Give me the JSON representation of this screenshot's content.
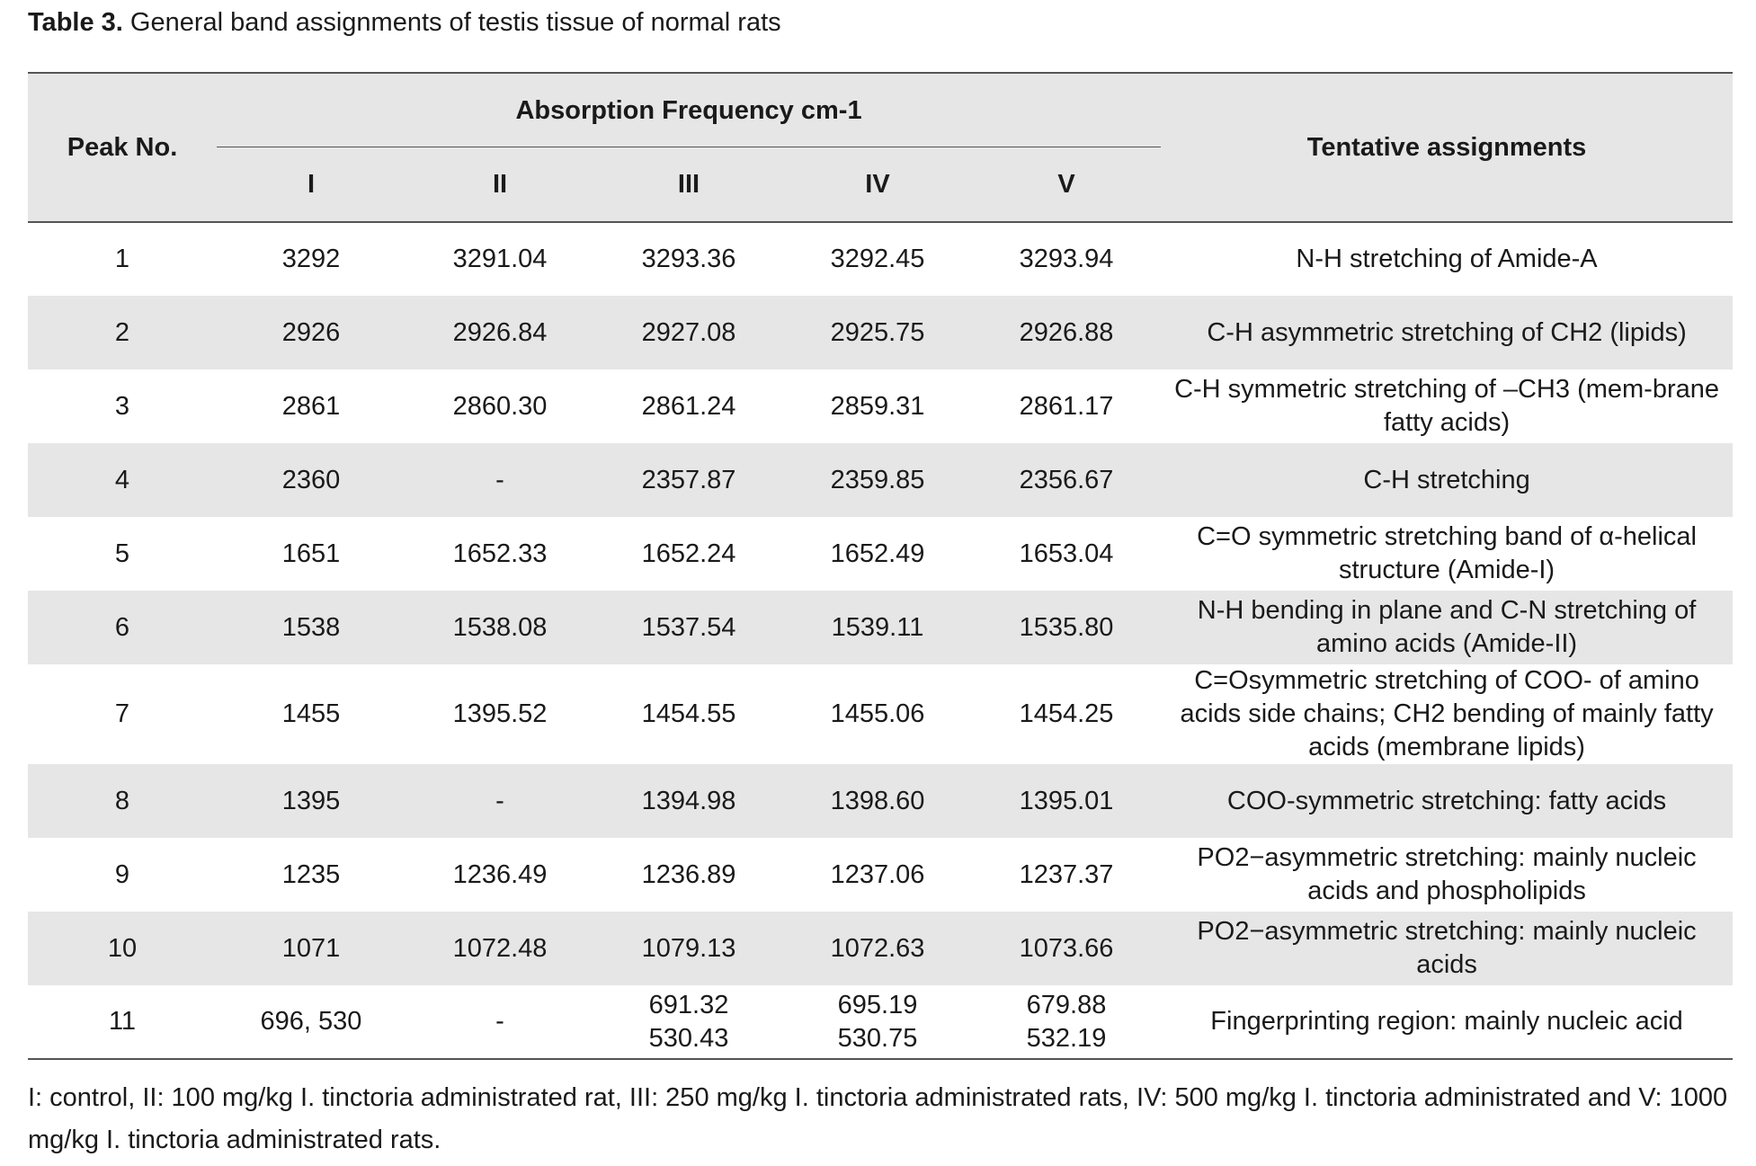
{
  "caption": {
    "label": "Table 3.",
    "text": "General band assignments of testis tissue of normal rats"
  },
  "headers": {
    "peak": "Peak No.",
    "absorption": "Absorption Frequency cm-1",
    "groups": [
      "I",
      "II",
      "III",
      "IV",
      "V"
    ],
    "assignment": "Tentative assignments"
  },
  "rows": [
    {
      "peak": "1",
      "vals": [
        "3292",
        "3291.04",
        "3293.36",
        "3292.45",
        "3293.94"
      ],
      "assign": "N-H stretching of Amide-A"
    },
    {
      "peak": "2",
      "vals": [
        "2926",
        "2926.84",
        "2927.08",
        "2925.75",
        "2926.88"
      ],
      "assign": "C-H asymmetric stretching of CH2 (lipids)"
    },
    {
      "peak": "3",
      "vals": [
        "2861",
        "2860.30",
        "2861.24",
        "2859.31",
        "2861.17"
      ],
      "assign": "C-H symmetric stretching of –CH3 (mem-brane fatty acids)"
    },
    {
      "peak": "4",
      "vals": [
        "2360",
        "-",
        "2357.87",
        "2359.85",
        "2356.67"
      ],
      "assign": "C-H stretching"
    },
    {
      "peak": "5",
      "vals": [
        "1651",
        "1652.33",
        "1652.24",
        "1652.49",
        "1653.04"
      ],
      "assign": "C=O symmetric stretching band of α-helical structure (Amide-I)"
    },
    {
      "peak": "6",
      "vals": [
        "1538",
        "1538.08",
        "1537.54",
        "1539.11",
        "1535.80"
      ],
      "assign": "N-H bending in plane and C-N stretching of amino acids (Amide-II)"
    },
    {
      "peak": "7",
      "vals": [
        "1455",
        "1395.52",
        "1454.55",
        "1455.06",
        "1454.25"
      ],
      "assign": "C=Osymmetric stretching of COO- of amino acids side chains; CH2 bending of mainly fatty acids (membrane lipids)"
    },
    {
      "peak": "8",
      "vals": [
        "1395",
        "-",
        "1394.98",
        "1398.60",
        "1395.01"
      ],
      "assign": "COO-symmetric stretching: fatty acids"
    },
    {
      "peak": "9",
      "vals": [
        "1235",
        "1236.49",
        "1236.89",
        "1237.06",
        "1237.37"
      ],
      "assign": "PO2−asymmetric stretching: mainly nucleic acids and phospholipids"
    },
    {
      "peak": "10",
      "vals": [
        "1071",
        "1072.48",
        "1079.13",
        "1072.63",
        "1073.66"
      ],
      "assign": "PO2−asymmetric stretching: mainly nucleic acids"
    },
    {
      "peak": "11",
      "vals": [
        "696, 530",
        "-",
        "691.32\n530.43",
        "695.19\n530.75",
        "679.88\n532.19"
      ],
      "assign": "Fingerprinting region: mainly nucleic acid"
    }
  ],
  "footnote": "I: control, II:  100 mg/kg  I. tinctoria administrated rat,  III:  250 mg/kg  I. tinctoria administrated rats, IV: 500 mg/kg  I. tinctoria administrated and V: 1000 mg/kg  I. tinctoria administrated rats.",
  "colors": {
    "header_bg": "#e6e6e6",
    "rule": "#555555",
    "text": "#1a1a1a"
  }
}
